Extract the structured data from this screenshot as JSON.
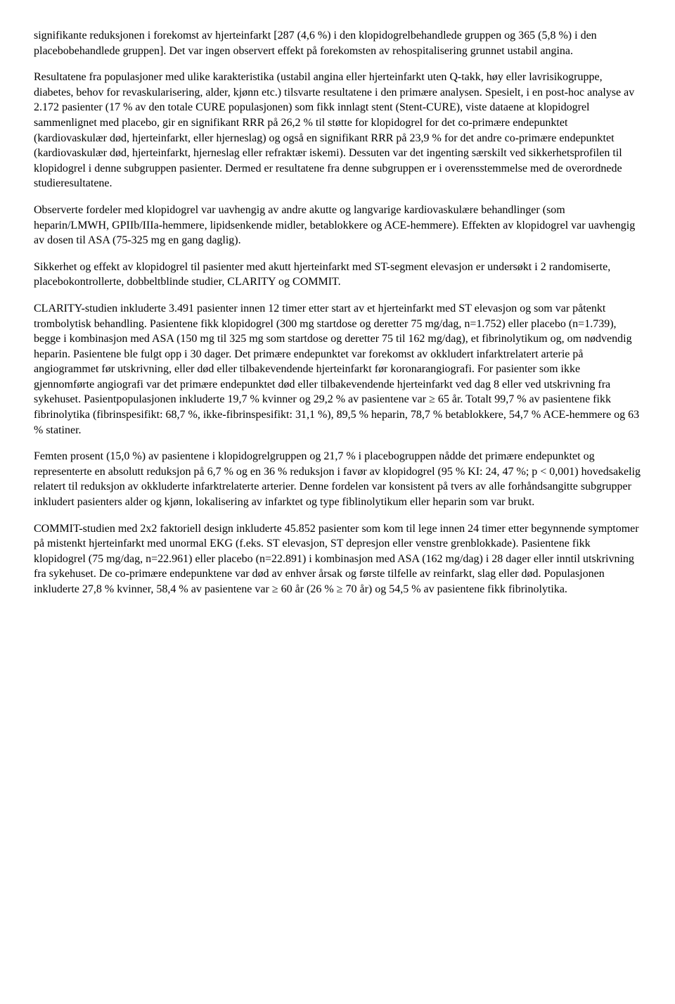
{
  "paragraphs": {
    "p1": "signifikante reduksjonen i forekomst av hjerteinfarkt [287 (4,6 %) i den klopidogrelbehandlede gruppen og 365 (5,8 %) i den placebobehandlede gruppen]. Det var ingen observert effekt på forekomsten av rehospitalisering grunnet ustabil angina.",
    "p2": "Resultatene fra populasjoner med ulike karakteristika (ustabil angina eller hjerteinfarkt uten Q-takk, høy eller lavrisikogruppe, diabetes, behov for revaskularisering, alder, kjønn etc.) tilsvarte resultatene i den primære analysen. Spesielt, i en post-hoc analyse av 2.172 pasienter (17 % av den totale CURE populasjonen) som fikk innlagt stent (Stent-CURE), viste dataene at klopidogrel sammenlignet med placebo, gir en signifikant RRR på 26,2 % til støtte for klopidogrel for det co-primære endepunktet (kardiovaskulær død, hjerteinfarkt, eller hjerneslag) og også en signifikant RRR på 23,9 % for det andre co-primære endepunktet (kardiovaskulær død, hjerteinfarkt, hjerneslag eller refraktær iskemi). Dessuten var det ingenting særskilt ved sikkerhetsprofilen til klopidogrel i denne subgruppen pasienter. Dermed er resultatene fra denne subgruppen er i overensstemmelse med de overordnede studieresultatene.",
    "p3": "Observerte fordeler med klopidogrel var uavhengig av andre akutte og langvarige kardiovaskulære behandlinger (som heparin/LMWH, GPIIb/IIIa-hemmere, lipidsenkende midler, betablokkere og ACE-hemmere). Effekten av klopidogrel var uavhengig av dosen til ASA (75-325 mg en gang daglig).",
    "p4": "Sikkerhet og effekt av klopidogrel til pasienter med akutt hjerteinfarkt med ST-segment elevasjon er undersøkt i 2 randomiserte, placebokontrollerte, dobbeltblinde studier, CLARITY og COMMIT.",
    "p5": "CLARITY-studien inkluderte 3.491 pasienter innen 12 timer etter start av et hjerteinfarkt med ST elevasjon og som var påtenkt trombolytisk behandling. Pasientene fikk klopidogrel (300 mg startdose og deretter 75 mg/dag, n=1.752) eller placebo (n=1.739), begge i kombinasjon med ASA (150 mg til 325 mg som startdose og deretter 75 til 162 mg/dag), et fibrinolytikum og, om nødvendig heparin. Pasientene ble fulgt opp i 30 dager. Det primære endepunktet var forekomst av okkludert infarktrelatert arterie på angiogrammet før utskrivning, eller død eller tilbakevendende hjerteinfarkt før koronarangiografi. For pasienter som ikke gjennomførte angiografi var det primære endepunktet død eller tilbakevendende hjerteinfarkt ved dag 8 eller ved utskrivning fra sykehuset. Pasientpopulasjonen inkluderte 19,7 % kvinner og 29,2 % av pasientene var ≥ 65 år. Totalt 99,7 % av pasientene fikk fibrinolytika (fibrinspesifikt: 68,7 %, ikke-fibrinspesifikt: 31,1 %), 89,5 % heparin, 78,7 % betablokkere, 54,7 % ACE-hemmere og 63 % statiner.",
    "p6": "Femten prosent (15,0 %) av pasientene i klopidogrelgruppen og 21,7 % i placebogruppen nådde det primære endepunktet og representerte en absolutt reduksjon på 6,7 % og en 36 % reduksjon i favør av klopidogrel (95 % KI: 24, 47 %; p < 0,001) hovedsakelig relatert til reduksjon av okkluderte infarktrelaterte arterier. Denne fordelen var konsistent på tvers av alle forhåndsangitte subgrupper inkludert pasienters alder og kjønn, lokalisering av infarktet og type fiblinolytikum eller heparin som var brukt.",
    "p7": "COMMIT-studien med 2x2 faktoriell design inkluderte 45.852 pasienter som kom til lege innen 24 timer etter begynnende symptomer på mistenkt hjerteinfarkt med unormal EKG (f.eks. ST elevasjon, ST depresjon eller venstre grenblokkade). Pasientene fikk klopidogrel (75 mg/dag, n=22.961) eller placebo (n=22.891) i kombinasjon med ASA (162 mg/dag) i 28 dager eller inntil utskrivning fra sykehuset. De co-primære endepunktene var død av enhver årsak og første tilfelle av reinfarkt, slag eller død. Populasjonen inkluderte 27,8 % kvinner, 58,4 % av pasientene var ≥ 60 år (26 % ≥ 70 år) og 54,5 % av pasientene fikk fibrinolytika."
  }
}
